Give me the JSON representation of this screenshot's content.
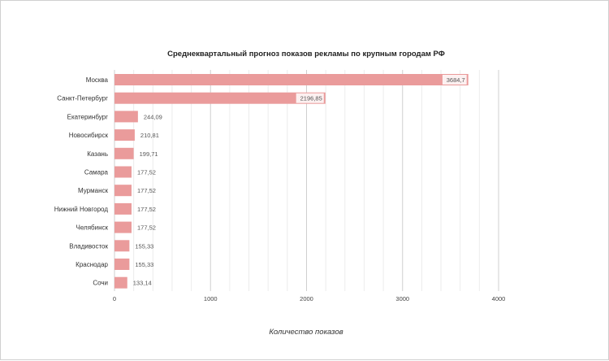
{
  "chart_data": {
    "type": "bar",
    "orientation": "horizontal",
    "title": "Среднеквартальный прогноз показов рекламы по крупным городам РФ",
    "xlabel": "Количество показов",
    "ylabel": "",
    "xlim": [
      0,
      4000
    ],
    "x_ticks": [
      "0",
      "1000",
      "2000",
      "3000",
      "4000"
    ],
    "grid": true,
    "bar_color": "#ea9b9b",
    "categories": [
      "Москва",
      "Санкт-Петербург",
      "Екатеринбург",
      "Новосибирск",
      "Казань",
      "Самара",
      "Мурманск",
      "Нижний Новгород",
      "Челябинск",
      "Владивосток",
      "Краснодар",
      "Сочи"
    ],
    "values": [
      3684.7,
      2196.85,
      244.09,
      210.81,
      199.71,
      177.52,
      177.52,
      177.52,
      177.52,
      155.33,
      155.33,
      133.14
    ],
    "value_labels": [
      "3684,7",
      "2196,85",
      "244,09",
      "210,81",
      "199,71",
      "177,52",
      "177,52",
      "177,52",
      "177,52",
      "155,33",
      "155,33",
      "133,14"
    ]
  }
}
